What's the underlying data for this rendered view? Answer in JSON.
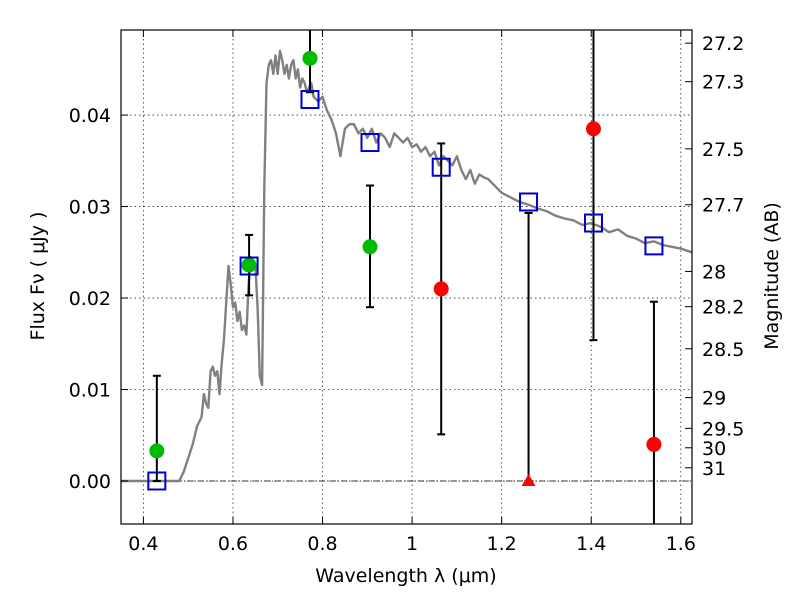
{
  "chart_data": {
    "type": "scatter",
    "xlabel": "Wavelength  λ (μm)",
    "ylabel": "Flux  Fν  ( μJy )",
    "y2label": "Magnitude (AB)",
    "xlim": [
      0.35,
      1.625
    ],
    "ylim": [
      -0.0047,
      0.0493
    ],
    "grid": true,
    "x_ticks": [
      0.4,
      0.6,
      0.8,
      1.0,
      1.2,
      1.4,
      1.6
    ],
    "x_tick_labels": [
      "0.4",
      "0.6",
      "0.8",
      "1",
      "1.2",
      "1.4",
      "1.6"
    ],
    "y_ticks": [
      0.0,
      0.01,
      0.02,
      0.03,
      0.04
    ],
    "y_tick_labels": [
      "0.00",
      "0.01",
      "0.02",
      "0.03",
      "0.04"
    ],
    "magnitude_ticks": [
      {
        "label": "27.2",
        "mag": 27.2
      },
      {
        "label": "27.3",
        "mag": 27.3
      },
      {
        "label": "27.5",
        "mag": 27.5
      },
      {
        "label": "27.7",
        "mag": 27.7
      },
      {
        "label": "28",
        "mag": 28.0
      },
      {
        "label": "28.2",
        "mag": 28.2
      },
      {
        "label": "28.5",
        "mag": 28.5
      },
      {
        "label": "29",
        "mag": 29.0
      },
      {
        "label": "29.5",
        "mag": 29.5
      },
      {
        "label": "30",
        "mag": 30.0
      },
      {
        "label": "31",
        "mag": 31.0
      }
    ],
    "sed_model": {
      "color": "#808080",
      "x": [
        0.35,
        0.48,
        0.49,
        0.5,
        0.51,
        0.52,
        0.53,
        0.535,
        0.54,
        0.545,
        0.55,
        0.555,
        0.56,
        0.565,
        0.57,
        0.575,
        0.58,
        0.585,
        0.59,
        0.595,
        0.6,
        0.605,
        0.61,
        0.615,
        0.62,
        0.625,
        0.63,
        0.635,
        0.64,
        0.645,
        0.65,
        0.655,
        0.66,
        0.665,
        0.67,
        0.675,
        0.68,
        0.685,
        0.69,
        0.695,
        0.7,
        0.705,
        0.71,
        0.715,
        0.72,
        0.725,
        0.73,
        0.735,
        0.74,
        0.745,
        0.75,
        0.755,
        0.76,
        0.765,
        0.77,
        0.775,
        0.78,
        0.79,
        0.8,
        0.81,
        0.82,
        0.83,
        0.84,
        0.85,
        0.86,
        0.87,
        0.88,
        0.89,
        0.9,
        0.91,
        0.92,
        0.93,
        0.94,
        0.95,
        0.96,
        0.97,
        0.98,
        0.99,
        1.0,
        1.01,
        1.02,
        1.03,
        1.04,
        1.05,
        1.06,
        1.07,
        1.08,
        1.09,
        1.1,
        1.11,
        1.12,
        1.13,
        1.14,
        1.15,
        1.16,
        1.17,
        1.18,
        1.2,
        1.22,
        1.24,
        1.26,
        1.28,
        1.3,
        1.32,
        1.34,
        1.36,
        1.38,
        1.4,
        1.42,
        1.44,
        1.46,
        1.48,
        1.5,
        1.52,
        1.54,
        1.56,
        1.58,
        1.6,
        1.625
      ],
      "y": [
        0.0,
        0.0,
        0.001,
        0.0025,
        0.004,
        0.006,
        0.007,
        0.0095,
        0.0085,
        0.008,
        0.012,
        0.0125,
        0.0115,
        0.012,
        0.0095,
        0.013,
        0.0155,
        0.0195,
        0.0235,
        0.0215,
        0.019,
        0.0195,
        0.0175,
        0.0185,
        0.0165,
        0.017,
        0.016,
        0.0215,
        0.0245,
        0.024,
        0.0235,
        0.019,
        0.0115,
        0.0105,
        0.032,
        0.0435,
        0.0455,
        0.046,
        0.0445,
        0.0465,
        0.0445,
        0.047,
        0.046,
        0.0445,
        0.0455,
        0.044,
        0.0455,
        0.046,
        0.044,
        0.045,
        0.043,
        0.044,
        0.0435,
        0.0425,
        0.043,
        0.0435,
        0.042,
        0.0415,
        0.042,
        0.0405,
        0.0395,
        0.038,
        0.0355,
        0.0385,
        0.039,
        0.039,
        0.038,
        0.0385,
        0.0375,
        0.0385,
        0.037,
        0.038,
        0.0375,
        0.0365,
        0.038,
        0.0375,
        0.037,
        0.0375,
        0.0365,
        0.0368,
        0.036,
        0.0365,
        0.0355,
        0.036,
        0.0345,
        0.0355,
        0.035,
        0.0345,
        0.0355,
        0.034,
        0.033,
        0.034,
        0.0325,
        0.0335,
        0.0332,
        0.033,
        0.0325,
        0.0315,
        0.031,
        0.0305,
        0.0302,
        0.0298,
        0.0295,
        0.029,
        0.0287,
        0.0285,
        0.028,
        0.0282,
        0.0278,
        0.0272,
        0.0275,
        0.0268,
        0.0265,
        0.026,
        0.0262,
        0.0258,
        0.0256,
        0.0254,
        0.025
      ]
    },
    "model_photometry": {
      "marker": "open-square",
      "color": "#0000cc",
      "points": [
        {
          "x": 0.43,
          "y": 0.0
        },
        {
          "x": 0.636,
          "y": 0.0235
        },
        {
          "x": 0.772,
          "y": 0.0417
        },
        {
          "x": 0.906,
          "y": 0.037
        },
        {
          "x": 1.065,
          "y": 0.0343
        },
        {
          "x": 1.26,
          "y": 0.0305
        },
        {
          "x": 1.405,
          "y": 0.0282
        },
        {
          "x": 1.54,
          "y": 0.0257
        }
      ]
    },
    "detections": {
      "marker": "filled-circle",
      "color": "#00bb00",
      "points": [
        {
          "x": 0.43,
          "y": 0.0033,
          "yerr_low": 0.0,
          "yerr_high": 0.0115
        },
        {
          "x": 0.636,
          "y": 0.0236,
          "yerr_low": 0.0203,
          "yerr_high": 0.0269
        },
        {
          "x": 0.772,
          "y": 0.0462,
          "yerr_low": 0.0425,
          "yerr_high": 0.0493
        },
        {
          "x": 0.906,
          "y": 0.0256,
          "yerr_low": 0.019,
          "yerr_high": 0.0323
        }
      ]
    },
    "non_detections": {
      "marker": "filled-circle",
      "color": "#ff0000",
      "points": [
        {
          "x": 1.065,
          "y": 0.021,
          "yerr_low": 0.0051,
          "yerr_high": 0.0369
        },
        {
          "x": 1.26,
          "y": 0.0,
          "yerr_low": 0.0,
          "yerr_high": 0.0293,
          "marker": "triangle"
        },
        {
          "x": 1.405,
          "y": 0.0385,
          "yerr_low": 0.0154,
          "yerr_high": 0.0493
        },
        {
          "x": 1.54,
          "y": 0.004,
          "yerr_low": -0.0047,
          "yerr_high": 0.0196
        }
      ]
    }
  }
}
